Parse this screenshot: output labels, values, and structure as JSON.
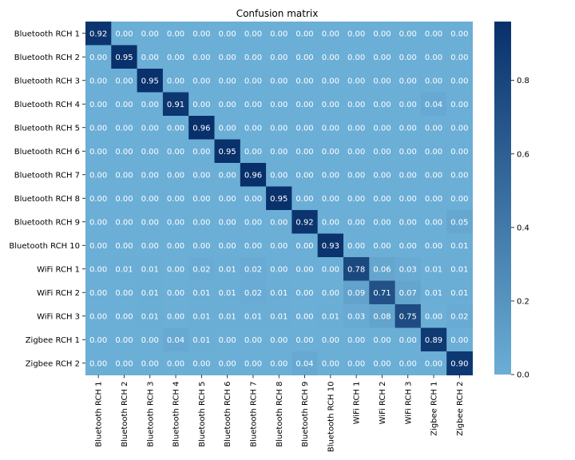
{
  "chart_data": {
    "type": "heatmap",
    "title": "Confusion matrix",
    "xlabel": "",
    "ylabel": "",
    "row_labels": [
      "Bluetooth RCH 1",
      "Bluetooth RCH 2",
      "Bluetooth RCH 3",
      "Bluetooth RCH 4",
      "Bluetooth RCH 5",
      "Bluetooth RCH 6",
      "Bluetooth RCH 7",
      "Bluetooth RCH 8",
      "Bluetooth RCH 9",
      "Bluetooth RCH 10",
      "WiFi RCH 1",
      "WiFi RCH 2",
      "WiFi RCH 3",
      "Zigbee RCH 1",
      "Zigbee RCH 2"
    ],
    "col_labels": [
      "Bluetooth RCH 1",
      "Bluetooth RCH 2",
      "Bluetooth RCH 3",
      "Bluetooth RCH 4",
      "Bluetooth RCH 5",
      "Bluetooth RCH 6",
      "Bluetooth RCH 7",
      "Bluetooth RCH 8",
      "Bluetooth RCH 9",
      "Bluetooth RCH 10",
      "WiFi RCH 1",
      "WiFi RCH 2",
      "WiFi RCH 3",
      "Zigbee RCH 1",
      "Zigbee RCH 2"
    ],
    "values": [
      [
        0.92,
        0.0,
        0.0,
        0.0,
        0.0,
        0.0,
        0.0,
        0.0,
        0.0,
        0.0,
        0.0,
        0.0,
        0.0,
        0.0,
        0.0
      ],
      [
        0.0,
        0.95,
        0.0,
        0.0,
        0.0,
        0.0,
        0.0,
        0.0,
        0.0,
        0.0,
        0.0,
        0.0,
        0.0,
        0.0,
        0.0
      ],
      [
        0.0,
        0.0,
        0.95,
        0.0,
        0.0,
        0.0,
        0.0,
        0.0,
        0.0,
        0.0,
        0.0,
        0.0,
        0.0,
        0.0,
        0.0
      ],
      [
        0.0,
        0.0,
        0.0,
        0.91,
        0.0,
        0.0,
        0.0,
        0.0,
        0.0,
        0.0,
        0.0,
        0.0,
        0.0,
        0.04,
        0.0
      ],
      [
        0.0,
        0.0,
        0.0,
        0.0,
        0.96,
        0.0,
        0.0,
        0.0,
        0.0,
        0.0,
        0.0,
        0.0,
        0.0,
        0.0,
        0.0
      ],
      [
        0.0,
        0.0,
        0.0,
        0.0,
        0.0,
        0.95,
        0.0,
        0.0,
        0.0,
        0.0,
        0.0,
        0.0,
        0.0,
        0.0,
        0.0
      ],
      [
        0.0,
        0.0,
        0.0,
        0.0,
        0.0,
        0.0,
        0.96,
        0.0,
        0.0,
        0.0,
        0.0,
        0.0,
        0.0,
        0.0,
        0.0
      ],
      [
        0.0,
        0.0,
        0.0,
        0.0,
        0.0,
        0.0,
        0.0,
        0.95,
        0.0,
        0.0,
        0.0,
        0.0,
        0.0,
        0.0,
        0.0
      ],
      [
        0.0,
        0.0,
        0.0,
        0.0,
        0.0,
        0.0,
        0.0,
        0.0,
        0.92,
        0.0,
        0.0,
        0.0,
        0.0,
        0.0,
        0.05
      ],
      [
        0.0,
        0.0,
        0.0,
        0.0,
        0.0,
        0.0,
        0.0,
        0.0,
        0.0,
        0.93,
        0.0,
        0.0,
        0.0,
        0.0,
        0.01
      ],
      [
        0.0,
        0.01,
        0.01,
        0.0,
        0.02,
        0.01,
        0.02,
        0.0,
        0.0,
        0.0,
        0.78,
        0.06,
        0.03,
        0.01,
        0.01
      ],
      [
        0.0,
        0.0,
        0.01,
        0.0,
        0.01,
        0.01,
        0.02,
        0.01,
        0.0,
        0.0,
        0.09,
        0.71,
        0.07,
        0.01,
        0.01
      ],
      [
        0.0,
        0.0,
        0.01,
        0.0,
        0.01,
        0.01,
        0.01,
        0.01,
        0.0,
        0.01,
        0.03,
        0.08,
        0.75,
        0.0,
        0.02
      ],
      [
        0.0,
        0.0,
        0.0,
        0.04,
        0.01,
        0.0,
        0.0,
        0.0,
        0.0,
        0.0,
        0.0,
        0.0,
        0.0,
        0.89,
        0.0
      ],
      [
        0.0,
        0.0,
        0.0,
        0.0,
        0.0,
        0.0,
        0.0,
        0.0,
        0.04,
        0.0,
        0.0,
        0.0,
        0.0,
        0.0,
        0.9
      ]
    ],
    "value_format": "2 decimals",
    "colormap": "Blues",
    "color_low": "#6baed6",
    "color_high": "#08306b",
    "vmin": 0.0,
    "vmax": 0.96,
    "colorbar_ticks": [
      "0.0",
      "0.2",
      "0.4",
      "0.6",
      "0.8"
    ],
    "colorbar_tick_values": [
      0.0,
      0.2,
      0.4,
      0.6,
      0.8
    ],
    "grid": false,
    "legend": "colorbar-right"
  }
}
